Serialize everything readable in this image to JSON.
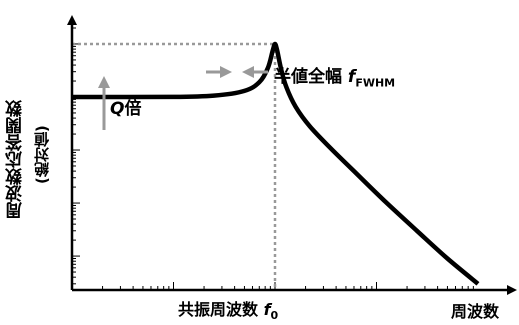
{
  "chart_data": {
    "type": "line",
    "title": "",
    "xlabel": "周波数",
    "ylabel": "周波数応答関数",
    "ylabel_sub": "(絶対値)",
    "xscale": "log",
    "yscale": "log",
    "grid": false,
    "legend": "none",
    "annotations": {
      "q_factor": {
        "italic": "Q",
        "text": "倍"
      },
      "fwhm": {
        "text": "半値全幅 ",
        "italic": "f",
        "subscript": "FWHM"
      },
      "resonance": {
        "text": "共振周波数 ",
        "italic": "f",
        "subscript": "0"
      }
    },
    "series": [
      {
        "x": [
          0.01,
          0.1,
          0.25,
          0.5,
          0.7,
          0.85,
          0.95,
          1.0,
          1.05,
          1.15,
          1.3,
          1.6,
          2.2,
          3.5,
          6,
          12,
          25,
          50,
          100
        ],
        "y": [
          1,
          1.005,
          1.06,
          1.3,
          1.9,
          3.5,
          7.5,
          10,
          7.5,
          3.3,
          1.5,
          0.65,
          0.28,
          0.11,
          0.04,
          0.011,
          0.003,
          0.0009,
          0.0003
        ]
      }
    ],
    "peak": {
      "x": 1.0,
      "y": 10
    },
    "baseline": 1,
    "xlim": [
      0.01,
      100
    ],
    "ylim": [
      0.00025,
      20
    ],
    "colors": {
      "curve": "#000000",
      "guide": "#999999",
      "axis": "#000000"
    }
  }
}
